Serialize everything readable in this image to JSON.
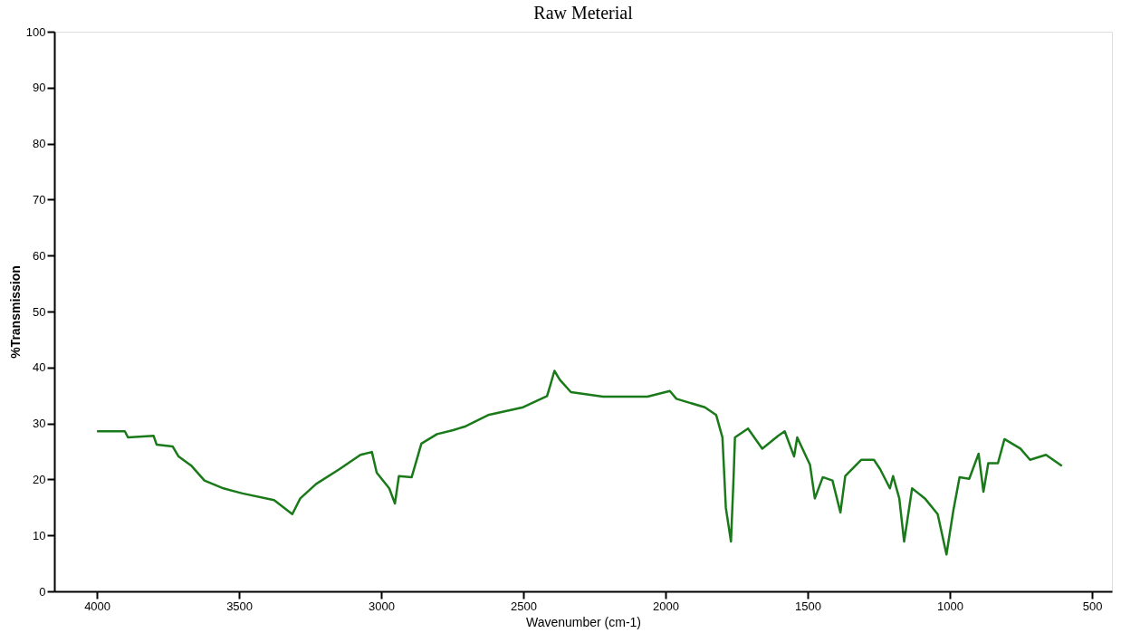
{
  "chart_data": {
    "type": "line",
    "title": "Raw Meterial",
    "xlabel": "Wavenumber (cm-1)",
    "ylabel": "%Transmission",
    "xlim": [
      4150,
      430
    ],
    "xticks": [
      4000,
      3500,
      3000,
      2500,
      2000,
      1500,
      1000,
      500
    ],
    "ylim": [
      0,
      100
    ],
    "yticks": [
      0,
      10,
      20,
      30,
      40,
      50,
      60,
      70,
      80,
      90,
      100
    ],
    "grid": false,
    "marker": "none",
    "line_style": "solid",
    "series": [
      {
        "color": "#1a7a1a",
        "x": [
          4000,
          3902,
          3891,
          3801,
          3790,
          3734,
          3713,
          3667,
          3622,
          3555,
          3488,
          3377,
          3313,
          3285,
          3229,
          3148,
          3073,
          3033,
          3016,
          2972,
          2952,
          2938,
          2893,
          2859,
          2804,
          2747,
          2703,
          2624,
          2501,
          2417,
          2405,
          2391,
          2372,
          2333,
          2220,
          2064,
          1985,
          1962,
          1862,
          1822,
          1800,
          1788,
          1770,
          1761,
          1756,
          1710,
          1660,
          1604,
          1581,
          1548,
          1537,
          1492,
          1475,
          1447,
          1413,
          1385,
          1368,
          1312,
          1267,
          1245,
          1211,
          1200,
          1178,
          1161,
          1133,
          1088,
          1043,
          1012,
          988,
          966,
          932,
          899,
          882,
          865,
          831,
          808,
          752,
          718,
          662,
          606
        ],
        "values": [
          28.6,
          28.6,
          27.5,
          27.8,
          26.2,
          25.9,
          24.1,
          22.4,
          19.8,
          18.4,
          17.5,
          16.3,
          13.8,
          16.6,
          19.2,
          21.8,
          24.4,
          24.9,
          21.2,
          18.4,
          15.7,
          20.6,
          20.4,
          26.4,
          28.1,
          28.8,
          29.5,
          31.5,
          32.9,
          34.9,
          36.9,
          39.4,
          37.8,
          35.6,
          34.8,
          34.8,
          35.8,
          34.4,
          32.9,
          31.5,
          27.5,
          14.9,
          8.9,
          20.1,
          27.5,
          29.1,
          25.5,
          27.8,
          28.6,
          24.1,
          27.5,
          22.6,
          16.6,
          20.4,
          19.8,
          14.1,
          20.6,
          23.5,
          23.5,
          21.8,
          18.4,
          20.6,
          16.6,
          8.9,
          18.4,
          16.6,
          13.8,
          6.6,
          14.4,
          20.4,
          20.1,
          24.6,
          17.8,
          22.9,
          22.9,
          27.2,
          25.5,
          23.5,
          24.4,
          22.4
        ]
      }
    ]
  }
}
